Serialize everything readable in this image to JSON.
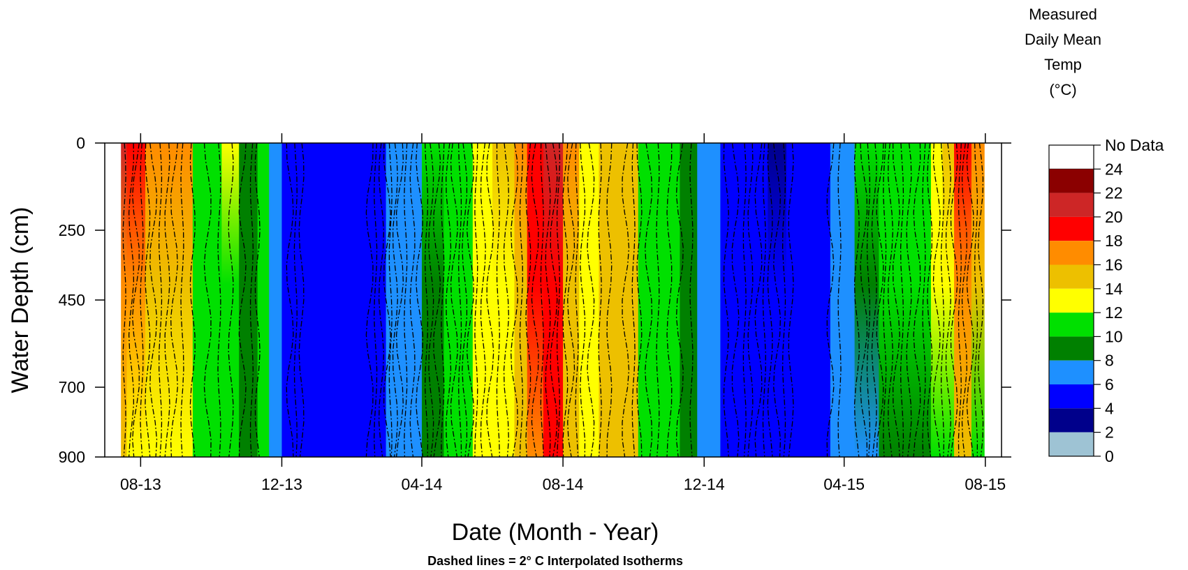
{
  "chart_data": {
    "type": "heatmap",
    "xlabel": "Date (Month - Year)",
    "ylabel": "Water Depth (cm)",
    "note": "Dashed lines = 2° C Interpolated Isotherms",
    "x_ticks": [
      "08-13",
      "12-13",
      "04-14",
      "08-14",
      "12-14",
      "04-15",
      "08-15"
    ],
    "y_ticks": [
      "0",
      "250",
      "450",
      "700",
      "900"
    ],
    "ylim": [
      0,
      900
    ],
    "y_inverted": true,
    "legend": {
      "title_lines": [
        "Measured",
        "Daily Mean",
        "Temp",
        "(°C)"
      ],
      "no_data_label": "No Data",
      "no_data_color": "#ffffff",
      "bins": [
        {
          "min": 0,
          "max": 2,
          "color": "#9ec3d4"
        },
        {
          "min": 2,
          "max": 4,
          "color": "#00008b"
        },
        {
          "min": 4,
          "max": 6,
          "color": "#0000ff"
        },
        {
          "min": 6,
          "max": 8,
          "color": "#1e90ff"
        },
        {
          "min": 8,
          "max": 10,
          "color": "#008000"
        },
        {
          "min": 10,
          "max": 12,
          "color": "#00e000"
        },
        {
          "min": 12,
          "max": 14,
          "color": "#ffff00"
        },
        {
          "min": 14,
          "max": 16,
          "color": "#edc000"
        },
        {
          "min": 16,
          "max": 18,
          "color": "#ff8c00"
        },
        {
          "min": 18,
          "max": 20,
          "color": "#ff0000"
        },
        {
          "min": 20,
          "max": 22,
          "color": "#cd2626"
        },
        {
          "min": 22,
          "max": 24,
          "color": "#8b0000"
        }
      ],
      "labels": [
        "0",
        "2",
        "4",
        "6",
        "8",
        "10",
        "12",
        "14",
        "16",
        "18",
        "20",
        "22",
        "24"
      ]
    },
    "grid": false,
    "data_start": "2013-07-15",
    "data_end": "2015-07-31",
    "temperature_columns": [
      {
        "start": "2013-07-15",
        "end": "2013-07-20",
        "top": 21,
        "bottom": 14
      },
      {
        "start": "2013-07-20",
        "end": "2013-08-05",
        "top": 19,
        "bottom": 13
      },
      {
        "start": "2013-08-05",
        "end": "2013-09-15",
        "top": 16,
        "bottom": 13
      },
      {
        "start": "2013-09-15",
        "end": "2013-10-10",
        "top": 11,
        "bottom": 11
      },
      {
        "start": "2013-10-10",
        "end": "2013-10-25",
        "top": 12,
        "bottom": 10
      },
      {
        "start": "2013-10-25",
        "end": "2013-11-10",
        "top": 9,
        "bottom": 9
      },
      {
        "start": "2013-11-10",
        "end": "2013-11-20",
        "top": 10,
        "bottom": 10
      },
      {
        "start": "2013-11-20",
        "end": "2013-12-01",
        "top": 7,
        "bottom": 7
      },
      {
        "start": "2013-12-01",
        "end": "2014-03-01",
        "top": 5,
        "bottom": 5
      },
      {
        "start": "2014-03-01",
        "end": "2014-03-20",
        "top": 6,
        "bottom": 6
      },
      {
        "start": "2014-03-20",
        "end": "2014-04-01",
        "top": 7,
        "bottom": 7
      },
      {
        "start": "2014-04-01",
        "end": "2014-04-20",
        "top": 10,
        "bottom": 9
      },
      {
        "start": "2014-04-20",
        "end": "2014-05-15",
        "top": 11,
        "bottom": 11
      },
      {
        "start": "2014-05-15",
        "end": "2014-06-01",
        "top": 13,
        "bottom": 12
      },
      {
        "start": "2014-06-01",
        "end": "2014-06-20",
        "top": 14,
        "bottom": 13
      },
      {
        "start": "2014-06-20",
        "end": "2014-07-01",
        "top": 16,
        "bottom": 15
      },
      {
        "start": "2014-07-01",
        "end": "2014-07-15",
        "top": 19,
        "bottom": 17
      },
      {
        "start": "2014-07-15",
        "end": "2014-08-01",
        "top": 20,
        "bottom": 18
      },
      {
        "start": "2014-08-01",
        "end": "2014-08-15",
        "top": 16,
        "bottom": 15
      },
      {
        "start": "2014-08-15",
        "end": "2014-09-01",
        "top": 13,
        "bottom": 13
      },
      {
        "start": "2014-09-01",
        "end": "2014-10-05",
        "top": 15,
        "bottom": 15
      },
      {
        "start": "2014-10-05",
        "end": "2014-10-20",
        "top": 11,
        "bottom": 11
      },
      {
        "start": "2014-10-20",
        "end": "2014-11-10",
        "top": 10,
        "bottom": 10
      },
      {
        "start": "2014-11-10",
        "end": "2014-11-25",
        "top": 9,
        "bottom": 9
      },
      {
        "start": "2014-11-25",
        "end": "2014-12-15",
        "top": 7,
        "bottom": 7
      },
      {
        "start": "2014-12-15",
        "end": "2015-01-25",
        "top": 5,
        "bottom": 5
      },
      {
        "start": "2015-01-25",
        "end": "2015-02-10",
        "top": 3,
        "bottom": 5
      },
      {
        "start": "2015-02-10",
        "end": "2015-03-20",
        "top": 5,
        "bottom": 5
      },
      {
        "start": "2015-03-20",
        "end": "2015-04-10",
        "top": 7,
        "bottom": 7
      },
      {
        "start": "2015-04-10",
        "end": "2015-05-01",
        "top": 10,
        "bottom": 7
      },
      {
        "start": "2015-05-01",
        "end": "2015-05-20",
        "top": 11,
        "bottom": 9
      },
      {
        "start": "2015-05-20",
        "end": "2015-06-15",
        "top": 11,
        "bottom": 9
      },
      {
        "start": "2015-06-15",
        "end": "2015-06-25",
        "top": 13,
        "bottom": 11
      },
      {
        "start": "2015-06-25",
        "end": "2015-07-05",
        "top": 15,
        "bottom": 11
      },
      {
        "start": "2015-07-05",
        "end": "2015-07-20",
        "top": 19,
        "bottom": 15
      },
      {
        "start": "2015-07-20",
        "end": "2015-07-31",
        "top": 17,
        "bottom": 11
      }
    ],
    "isotherm_dates": [
      "2013-07-18",
      "2013-07-24",
      "2013-07-28",
      "2013-08-02",
      "2013-08-07",
      "2013-08-12",
      "2013-08-18",
      "2013-08-24",
      "2013-08-30",
      "2013-09-06",
      "2013-09-15",
      "2013-09-28",
      "2013-10-08",
      "2013-10-18",
      "2013-10-28",
      "2013-11-05",
      "2013-11-10",
      "2013-12-08",
      "2013-12-13",
      "2013-12-18",
      "2014-02-15",
      "2014-02-20",
      "2014-02-25",
      "2014-03-02",
      "2014-03-05",
      "2014-03-09",
      "2014-03-13",
      "2014-03-18",
      "2014-03-24",
      "2014-03-30",
      "2014-04-05",
      "2014-04-09",
      "2014-04-14",
      "2014-04-19",
      "2014-04-24",
      "2014-04-29",
      "2014-05-04",
      "2014-05-08",
      "2014-05-13",
      "2014-05-18",
      "2014-05-24",
      "2014-05-30",
      "2014-06-06",
      "2014-06-13",
      "2014-06-20",
      "2014-06-26",
      "2014-07-02",
      "2014-07-08",
      "2014-07-14",
      "2014-07-19",
      "2014-07-24",
      "2014-07-28",
      "2014-08-03",
      "2014-08-08",
      "2014-08-13",
      "2014-08-18",
      "2014-08-25",
      "2014-09-02",
      "2014-09-10",
      "2014-09-24",
      "2014-10-01",
      "2014-10-06",
      "2014-10-14",
      "2014-10-22",
      "2014-11-01",
      "2014-11-10",
      "2014-11-20",
      "2014-12-20",
      "2014-12-28",
      "2015-01-05",
      "2015-01-10",
      "2015-01-17",
      "2015-01-22",
      "2015-01-27",
      "2015-02-02",
      "2015-02-08",
      "2015-02-14",
      "2015-03-20",
      "2015-03-28",
      "2015-04-12",
      "2015-04-18",
      "2015-04-22",
      "2015-04-27",
      "2015-05-02",
      "2015-05-06",
      "2015-05-11",
      "2015-05-16",
      "2015-05-21",
      "2015-05-27",
      "2015-06-03",
      "2015-06-09",
      "2015-06-14",
      "2015-06-20",
      "2015-06-25",
      "2015-06-30",
      "2015-07-05",
      "2015-07-10",
      "2015-07-14",
      "2015-07-19",
      "2015-07-24",
      "2015-07-28"
    ]
  }
}
